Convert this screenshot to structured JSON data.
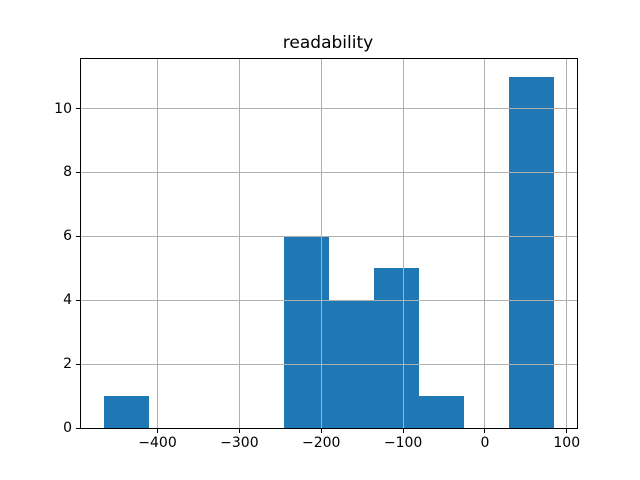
{
  "chart_data": {
    "type": "bar",
    "subtype": "histogram",
    "title": "readability",
    "xlabel": "",
    "ylabel": "",
    "bin_edges": [
      -466,
      -410.9,
      -355.8,
      -300.7,
      -245.6,
      -190.5,
      -135.4,
      -80.3,
      -25.2,
      29.9,
      85
    ],
    "counts": [
      1,
      0,
      0,
      0,
      6,
      4,
      5,
      1,
      0,
      11
    ],
    "xticks": [
      -400,
      -300,
      -200,
      -100,
      0,
      100
    ],
    "xtick_labels": [
      "−400",
      "−300",
      "−200",
      "−100",
      "0",
      "100"
    ],
    "yticks": [
      0,
      2,
      4,
      6,
      8,
      10
    ],
    "ytick_labels": [
      "0",
      "2",
      "4",
      "6",
      "8",
      "10"
    ],
    "xlim": [
      -493.5,
      112.5
    ],
    "ylim": [
      0,
      11.55
    ],
    "bar_color": "#1f77b4",
    "grid": true,
    "grid_color": "#b0b0b0",
    "grid_above_bars": true,
    "background_color": "#ffffff",
    "legend": null
  }
}
